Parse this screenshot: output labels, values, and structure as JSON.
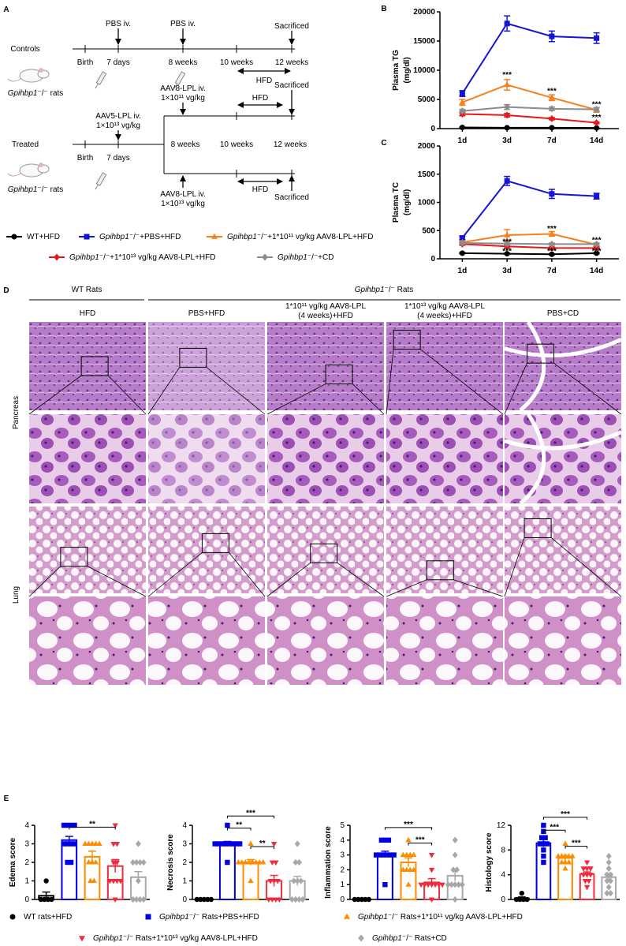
{
  "schematic": {
    "label": "A",
    "controls": {
      "title": "Controls",
      "rat_label": "Gpihbp1⁻/⁻ rats",
      "timepoints": [
        "Birth",
        "7 days",
        "8 weeks",
        "10 weeks",
        "12 weeks"
      ],
      "injections": [
        "PBS iv.",
        "PBS iv."
      ],
      "end": "Sacrificed",
      "diet": "HFD"
    },
    "treated": {
      "title": "Treated",
      "rat_label": "Gpihbp1⁻/⁻ rats",
      "timepoints": [
        "Birth",
        "7 days",
        "8 weeks",
        "10 weeks",
        "12 weeks"
      ],
      "injection": [
        "AAV5-LPL iv.",
        "1×10¹³ vg/kg"
      ],
      "upper_branch": {
        "injection": [
          "AAV8-LPL iv.",
          "1×10¹¹ vg/kg"
        ],
        "diet": "HFD",
        "end": "Sacrificed"
      },
      "lower_branch": {
        "injection": [
          "AAV8-LPL iv.",
          "1×10¹³ vg/kg"
        ],
        "diet": "HFD",
        "end": "Sacrificed"
      }
    }
  },
  "chart_data": [
    {
      "type": "line",
      "label": "B",
      "ylabel": [
        "Plasma TG",
        "(mg/dl)"
      ],
      "categories": [
        "1d",
        "3d",
        "7d",
        "14d"
      ],
      "ylim": [
        0,
        20000
      ],
      "yticks": [
        0,
        5000,
        10000,
        15000,
        20000
      ],
      "series": [
        {
          "name": "WT+HFD",
          "color": "#000000",
          "marker": "circle",
          "values": [
            200,
            150,
            150,
            120
          ],
          "errors": [
            30,
            30,
            30,
            20
          ]
        },
        {
          "name": "Gpihbp1⁻/⁻+PBS+HFD",
          "color": "#1414d2",
          "marker": "square",
          "values": [
            6000,
            18000,
            15800,
            15500
          ],
          "errors": [
            500,
            1300,
            900,
            900
          ]
        },
        {
          "name": "Gpihbp1⁻/⁻+1*10¹¹ vg/kg AAV8-LPL+HFD",
          "color": "#f77f1b",
          "marker": "triangle",
          "values": [
            4500,
            7500,
            5300,
            3200
          ],
          "errors": [
            500,
            900,
            500,
            400
          ]
        },
        {
          "name": "Gpihbp1⁻/⁻+1*10¹³ vg/kg AAV8-LPL+HFD",
          "color": "#e41a1c",
          "marker": "diamond",
          "values": [
            2500,
            2300,
            1700,
            1000
          ],
          "errors": [
            300,
            300,
            200,
            150
          ]
        },
        {
          "name": "Gpihbp1⁻/⁻+CD",
          "color": "#8c8c8c",
          "marker": "diamond",
          "values": [
            3000,
            3700,
            3400,
            3300
          ],
          "errors": [
            300,
            400,
            300,
            300
          ]
        }
      ],
      "annotations": [
        {
          "text": "***",
          "x": "3d",
          "y": 9200
        },
        {
          "text": "***",
          "x": "7d",
          "y": 6400
        },
        {
          "text": "***",
          "x": "14d",
          "y": 4100
        },
        {
          "text": "***",
          "x": "14d",
          "y": 1900
        }
      ]
    },
    {
      "type": "line",
      "label": "C",
      "ylabel": [
        "Plasma TC",
        "(mg/dl)"
      ],
      "categories": [
        "1d",
        "3d",
        "7d",
        "14d"
      ],
      "ylim": [
        0,
        2000
      ],
      "yticks": [
        0,
        500,
        1000,
        1500,
        2000
      ],
      "series": [
        {
          "color": "#000000",
          "marker": "circle",
          "values": [
            100,
            90,
            80,
            100
          ],
          "errors": [
            10,
            10,
            10,
            10
          ]
        },
        {
          "color": "#1414d2",
          "marker": "square",
          "values": [
            370,
            1380,
            1150,
            1110
          ],
          "errors": [
            30,
            80,
            80,
            50
          ]
        },
        {
          "color": "#f77f1b",
          "marker": "triangle",
          "values": [
            290,
            420,
            440,
            250
          ],
          "errors": [
            30,
            100,
            40,
            30
          ]
        },
        {
          "color": "#e41a1c",
          "marker": "diamond",
          "values": [
            260,
            220,
            190,
            190
          ],
          "errors": [
            20,
            30,
            20,
            20
          ]
        },
        {
          "color": "#8c8c8c",
          "marker": "diamond",
          "values": [
            280,
            270,
            260,
            260
          ],
          "errors": [
            20,
            30,
            20,
            20
          ]
        }
      ],
      "annotations": [
        {
          "text": "***",
          "x": "3d",
          "y": 300
        },
        {
          "text": "***",
          "x": "3d",
          "y": 130
        },
        {
          "text": "***",
          "x": "7d",
          "y": 530
        },
        {
          "text": "***",
          "x": "7d",
          "y": 130
        },
        {
          "text": "***",
          "x": "14d",
          "y": 330
        },
        {
          "text": "***",
          "x": "14d",
          "y": 130
        }
      ]
    },
    {
      "type": "bar",
      "label": "E",
      "ylabel": "Edema score",
      "ylim": [
        0,
        4
      ],
      "yticks": [
        0,
        1,
        2,
        3,
        4
      ],
      "values": [
        0.2,
        3.2,
        2.3,
        1.8,
        1.2
      ],
      "errors": [
        0.2,
        0.2,
        0.3,
        0.35,
        0.3
      ],
      "points": [
        [
          0,
          0,
          0,
          0,
          1
        ],
        [
          2,
          2,
          3,
          3,
          3,
          4,
          4,
          4,
          4,
          3
        ],
        [
          1,
          1,
          2,
          2,
          2,
          3,
          3,
          3,
          3,
          3
        ],
        [
          0,
          1,
          1,
          1,
          1,
          2,
          2,
          3,
          3,
          4
        ],
        [
          0,
          0,
          0,
          0,
          1,
          2,
          2,
          2,
          2,
          3
        ]
      ],
      "significance": [
        {
          "text": "**",
          "between": [
            1,
            3
          ],
          "y": 3.9
        }
      ]
    },
    {
      "type": "bar",
      "ylabel": "Necrosis score",
      "ylim": [
        0,
        4
      ],
      "yticks": [
        0,
        1,
        2,
        3,
        4
      ],
      "values": [
        0,
        3.0,
        2.0,
        1.0,
        1.0
      ],
      "errors": [
        0,
        0.13,
        0.15,
        0.3,
        0.25
      ],
      "points": [
        [
          0,
          0,
          0,
          0,
          0
        ],
        [
          2,
          3,
          3,
          3,
          3,
          3,
          3,
          3,
          3,
          4
        ],
        [
          1,
          2,
          2,
          2,
          2,
          2,
          2,
          2,
          2,
          3
        ],
        [
          0,
          0,
          0,
          0,
          1,
          1,
          1,
          2,
          2,
          3
        ],
        [
          0,
          0,
          0,
          0,
          1,
          1,
          1,
          2,
          2,
          3
        ]
      ],
      "significance": [
        {
          "text": "***",
          "between": [
            1,
            3
          ],
          "y": 4.5
        },
        {
          "text": "**",
          "between": [
            1,
            2
          ],
          "y": 3.85
        },
        {
          "text": "**",
          "between": [
            2,
            3
          ],
          "y": 2.85
        }
      ]
    },
    {
      "type": "bar",
      "ylabel": "Inflammation score",
      "ylim": [
        0,
        5
      ],
      "yticks": [
        0,
        1,
        2,
        3,
        4,
        5
      ],
      "values": [
        0,
        3.05,
        2.5,
        1.15,
        1.6
      ],
      "errors": [
        0,
        0.2,
        0.3,
        0.25,
        0.35
      ],
      "points": [
        [
          0,
          0,
          0,
          0,
          0
        ],
        [
          1,
          3,
          3,
          3,
          3,
          3,
          3,
          4,
          4,
          4
        ],
        [
          1,
          2,
          2,
          2,
          2,
          3,
          3,
          3,
          3,
          4
        ],
        [
          0,
          1,
          1,
          1,
          1,
          1,
          1,
          1,
          2,
          3
        ],
        [
          0,
          1,
          1,
          1,
          1,
          1,
          2,
          2,
          3,
          4
        ]
      ],
      "significance": [
        {
          "text": "***",
          "between": [
            1,
            3
          ],
          "y": 4.85
        },
        {
          "text": "***",
          "between": [
            2,
            3
          ],
          "y": 3.8
        }
      ]
    },
    {
      "type": "bar",
      "ylabel": "Histology score",
      "ylim": [
        0,
        12
      ],
      "yticks": [
        0,
        4,
        8,
        12
      ],
      "values": [
        0.2,
        9.1,
        6.7,
        4.1,
        3.6
      ],
      "errors": [
        0.2,
        0.6,
        0.4,
        0.35,
        0.6
      ],
      "points": [
        [
          0,
          0,
          0,
          0,
          1
        ],
        [
          6,
          7,
          8,
          9,
          9,
          9,
          10,
          10,
          11,
          12
        ],
        [
          5,
          6,
          6,
          6,
          7,
          7,
          7,
          7,
          7,
          9
        ],
        [
          2,
          3,
          3,
          4,
          4,
          4,
          5,
          5,
          5,
          6
        ],
        [
          1,
          1,
          2,
          3,
          3,
          4,
          4,
          5,
          6,
          7
        ]
      ],
      "significance": [
        {
          "text": "***",
          "between": [
            1,
            3
          ],
          "y": 13.3
        },
        {
          "text": "***",
          "between": [
            1,
            2
          ],
          "y": 11.2
        },
        {
          "text": "***",
          "between": [
            2,
            3
          ],
          "y": 8.6
        }
      ]
    }
  ],
  "panel_e_legend": [
    {
      "name": "WT rats+HFD",
      "color": "#000000",
      "marker": "circle"
    },
    {
      "name": "Gpihbp1⁻/⁻ Rats+PBS+HFD",
      "color": "#0000e6",
      "marker": "square"
    },
    {
      "name": "Gpihbp1⁻/⁻ Rats+1*10¹¹ vg/kg AAV8-LPL+HFD",
      "color": "#ff8c00",
      "marker": "triangle"
    },
    {
      "name": "Gpihbp1⁻/⁻ Rats+1*10¹³ vg/kg AAV8-LPL+HFD",
      "color": "#ee2c3c",
      "marker": "triangle-down"
    },
    {
      "name": "Gpihbp1⁻/⁻ Rats+CD",
      "color": "#a8a8a8",
      "marker": "diamond"
    }
  ],
  "histology": {
    "label": "D",
    "groups": [
      "WT Rats",
      "Gpihbp1⁻/⁻ Rats"
    ],
    "columns": [
      [
        "HFD"
      ],
      [
        "PBS+HFD"
      ],
      [
        "1*10¹¹ vg/kg AAV8-LPL",
        "(4 weeks)+HFD"
      ],
      [
        "1*10¹³ vg/kg AAV8-LPL",
        "(4 weeks)+HFD"
      ],
      [
        "PBS+CD"
      ]
    ],
    "rows": [
      "Pancreas",
      "Lung"
    ]
  }
}
